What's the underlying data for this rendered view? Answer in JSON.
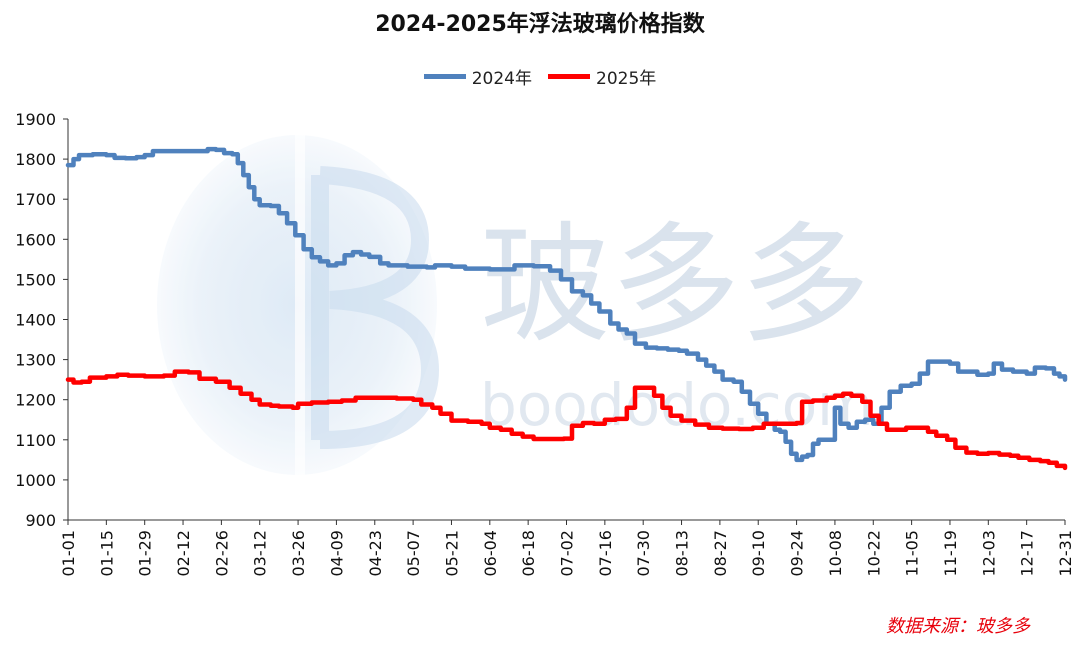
{
  "chart_data": {
    "type": "line",
    "title": "2024-2025年浮法玻璃价格指数",
    "xlabel": "",
    "ylabel": "",
    "ylim": [
      900,
      1900
    ],
    "yticks": [
      900,
      1000,
      1100,
      1200,
      1300,
      1400,
      1500,
      1600,
      1700,
      1800,
      1900
    ],
    "x_ticks": [
      "01-01",
      "01-15",
      "01-29",
      "02-12",
      "02-26",
      "03-12",
      "03-26",
      "04-09",
      "04-23",
      "05-07",
      "05-21",
      "06-04",
      "06-18",
      "07-02",
      "07-16",
      "07-30",
      "08-13",
      "08-27",
      "09-10",
      "09-24",
      "10-08",
      "10-22",
      "11-05",
      "11-19",
      "12-03",
      "12-17",
      "12-31"
    ],
    "legend_position": "top-center",
    "grid": false,
    "series": [
      {
        "name": "2024年",
        "color": "#4f81bd",
        "points": [
          [
            "01-01",
            1785
          ],
          [
            "01-03",
            1800
          ],
          [
            "01-05",
            1810
          ],
          [
            "01-10",
            1812
          ],
          [
            "01-15",
            1810
          ],
          [
            "01-18",
            1803
          ],
          [
            "01-22",
            1802
          ],
          [
            "01-26",
            1805
          ],
          [
            "01-29",
            1810
          ],
          [
            "02-01",
            1820
          ],
          [
            "02-05",
            1820
          ],
          [
            "02-12",
            1820
          ],
          [
            "02-18",
            1820
          ],
          [
            "02-21",
            1825
          ],
          [
            "02-24",
            1823
          ],
          [
            "02-27",
            1815
          ],
          [
            "03-02",
            1812
          ],
          [
            "03-04",
            1790
          ],
          [
            "03-06",
            1760
          ],
          [
            "03-08",
            1730
          ],
          [
            "03-10",
            1700
          ],
          [
            "03-12",
            1685
          ],
          [
            "03-16",
            1683
          ],
          [
            "03-19",
            1665
          ],
          [
            "03-22",
            1640
          ],
          [
            "03-25",
            1610
          ],
          [
            "03-28",
            1575
          ],
          [
            "03-31",
            1555
          ],
          [
            "04-03",
            1545
          ],
          [
            "04-06",
            1535
          ],
          [
            "04-09",
            1540
          ],
          [
            "04-12",
            1560
          ],
          [
            "04-15",
            1568
          ],
          [
            "04-18",
            1562
          ],
          [
            "04-21",
            1556
          ],
          [
            "04-25",
            1540
          ],
          [
            "04-28",
            1535
          ],
          [
            "05-05",
            1532
          ],
          [
            "05-12",
            1530
          ],
          [
            "05-15",
            1535
          ],
          [
            "05-21",
            1532
          ],
          [
            "05-26",
            1527
          ],
          [
            "06-04",
            1525
          ],
          [
            "06-08",
            1525
          ],
          [
            "06-13",
            1535
          ],
          [
            "06-20",
            1533
          ],
          [
            "06-26",
            1522
          ],
          [
            "06-30",
            1500
          ],
          [
            "07-04",
            1470
          ],
          [
            "07-08",
            1460
          ],
          [
            "07-11",
            1440
          ],
          [
            "07-14",
            1420
          ],
          [
            "07-18",
            1390
          ],
          [
            "07-21",
            1375
          ],
          [
            "07-24",
            1365
          ],
          [
            "07-27",
            1340
          ],
          [
            "07-31",
            1330
          ],
          [
            "08-04",
            1328
          ],
          [
            "08-08",
            1325
          ],
          [
            "08-12",
            1322
          ],
          [
            "08-15",
            1315
          ],
          [
            "08-19",
            1300
          ],
          [
            "08-22",
            1285
          ],
          [
            "08-25",
            1270
          ],
          [
            "08-28",
            1250
          ],
          [
            "09-01",
            1245
          ],
          [
            "09-04",
            1220
          ],
          [
            "09-07",
            1190
          ],
          [
            "09-10",
            1165
          ],
          [
            "09-13",
            1140
          ],
          [
            "09-16",
            1125
          ],
          [
            "09-18",
            1120
          ],
          [
            "09-20",
            1095
          ],
          [
            "09-22",
            1065
          ],
          [
            "09-24",
            1050
          ],
          [
            "09-26",
            1058
          ],
          [
            "09-28",
            1062
          ],
          [
            "09-30",
            1090
          ],
          [
            "10-02",
            1100
          ],
          [
            "10-06",
            1100
          ],
          [
            "10-08",
            1180
          ],
          [
            "10-10",
            1140
          ],
          [
            "10-13",
            1130
          ],
          [
            "10-16",
            1145
          ],
          [
            "10-19",
            1150
          ],
          [
            "10-22",
            1140
          ],
          [
            "10-25",
            1180
          ],
          [
            "10-28",
            1220
          ],
          [
            "11-01",
            1235
          ],
          [
            "11-05",
            1240
          ],
          [
            "11-08",
            1265
          ],
          [
            "11-11",
            1295
          ],
          [
            "11-15",
            1295
          ],
          [
            "11-19",
            1290
          ],
          [
            "11-22",
            1270
          ],
          [
            "11-26",
            1270
          ],
          [
            "11-29",
            1262
          ],
          [
            "12-03",
            1265
          ],
          [
            "12-05",
            1290
          ],
          [
            "12-08",
            1275
          ],
          [
            "12-12",
            1270
          ],
          [
            "12-17",
            1265
          ],
          [
            "12-20",
            1280
          ],
          [
            "12-24",
            1278
          ],
          [
            "12-27",
            1265
          ],
          [
            "12-29",
            1258
          ],
          [
            "12-31",
            1250
          ]
        ]
      },
      {
        "name": "2025年",
        "color": "#ff0000",
        "points": [
          [
            "01-01",
            1250
          ],
          [
            "01-03",
            1243
          ],
          [
            "01-06",
            1245
          ],
          [
            "01-09",
            1255
          ],
          [
            "01-15",
            1258
          ],
          [
            "01-19",
            1262
          ],
          [
            "01-23",
            1260
          ],
          [
            "01-29",
            1258
          ],
          [
            "02-05",
            1260
          ],
          [
            "02-09",
            1270
          ],
          [
            "02-14",
            1268
          ],
          [
            "02-18",
            1252
          ],
          [
            "02-24",
            1245
          ],
          [
            "03-01",
            1230
          ],
          [
            "03-05",
            1215
          ],
          [
            "03-09",
            1200
          ],
          [
            "03-12",
            1188
          ],
          [
            "03-16",
            1185
          ],
          [
            "03-19",
            1183
          ],
          [
            "03-24",
            1180
          ],
          [
            "03-26",
            1190
          ],
          [
            "03-31",
            1193
          ],
          [
            "04-06",
            1195
          ],
          [
            "04-11",
            1198
          ],
          [
            "04-16",
            1205
          ],
          [
            "04-23",
            1205
          ],
          [
            "05-01",
            1203
          ],
          [
            "05-07",
            1200
          ],
          [
            "05-10",
            1188
          ],
          [
            "05-14",
            1180
          ],
          [
            "05-17",
            1165
          ],
          [
            "05-21",
            1148
          ],
          [
            "05-27",
            1145
          ],
          [
            "06-01",
            1140
          ],
          [
            "06-04",
            1130
          ],
          [
            "06-08",
            1125
          ],
          [
            "06-12",
            1115
          ],
          [
            "06-16",
            1108
          ],
          [
            "06-20",
            1102
          ],
          [
            "06-25",
            1102
          ],
          [
            "07-01",
            1103
          ],
          [
            "07-04",
            1135
          ],
          [
            "07-08",
            1142
          ],
          [
            "07-12",
            1140
          ],
          [
            "07-16",
            1150
          ],
          [
            "07-20",
            1152
          ],
          [
            "07-24",
            1180
          ],
          [
            "07-27",
            1230
          ],
          [
            "07-30",
            1230
          ],
          [
            "08-03",
            1210
          ],
          [
            "08-06",
            1180
          ],
          [
            "08-09",
            1160
          ],
          [
            "08-13",
            1148
          ],
          [
            "08-18",
            1138
          ],
          [
            "08-23",
            1130
          ],
          [
            "08-28",
            1128
          ],
          [
            "09-03",
            1127
          ],
          [
            "09-08",
            1130
          ],
          [
            "09-12",
            1140
          ],
          [
            "09-16",
            1140
          ],
          [
            "09-20",
            1140
          ],
          [
            "09-24",
            1142
          ],
          [
            "09-26",
            1195
          ],
          [
            "09-30",
            1198
          ],
          [
            "10-05",
            1205
          ],
          [
            "10-08",
            1210
          ],
          [
            "10-11",
            1215
          ],
          [
            "10-14",
            1210
          ],
          [
            "10-18",
            1195
          ],
          [
            "10-21",
            1160
          ],
          [
            "10-24",
            1140
          ],
          [
            "10-27",
            1125
          ],
          [
            "10-31",
            1125
          ],
          [
            "11-03",
            1130
          ],
          [
            "11-07",
            1130
          ],
          [
            "11-11",
            1120
          ],
          [
            "11-14",
            1110
          ],
          [
            "11-18",
            1100
          ],
          [
            "11-21",
            1080
          ],
          [
            "11-25",
            1068
          ],
          [
            "11-29",
            1065
          ],
          [
            "12-03",
            1067
          ],
          [
            "12-07",
            1063
          ],
          [
            "12-11",
            1060
          ],
          [
            "12-14",
            1055
          ],
          [
            "12-18",
            1050
          ],
          [
            "12-22",
            1047
          ],
          [
            "12-25",
            1043
          ],
          [
            "12-28",
            1035
          ],
          [
            "12-31",
            1030
          ]
        ]
      }
    ]
  },
  "source_label": "数据来源：玻多多",
  "watermark": {
    "text": "玻多多",
    "subtext": "boododo.com"
  }
}
